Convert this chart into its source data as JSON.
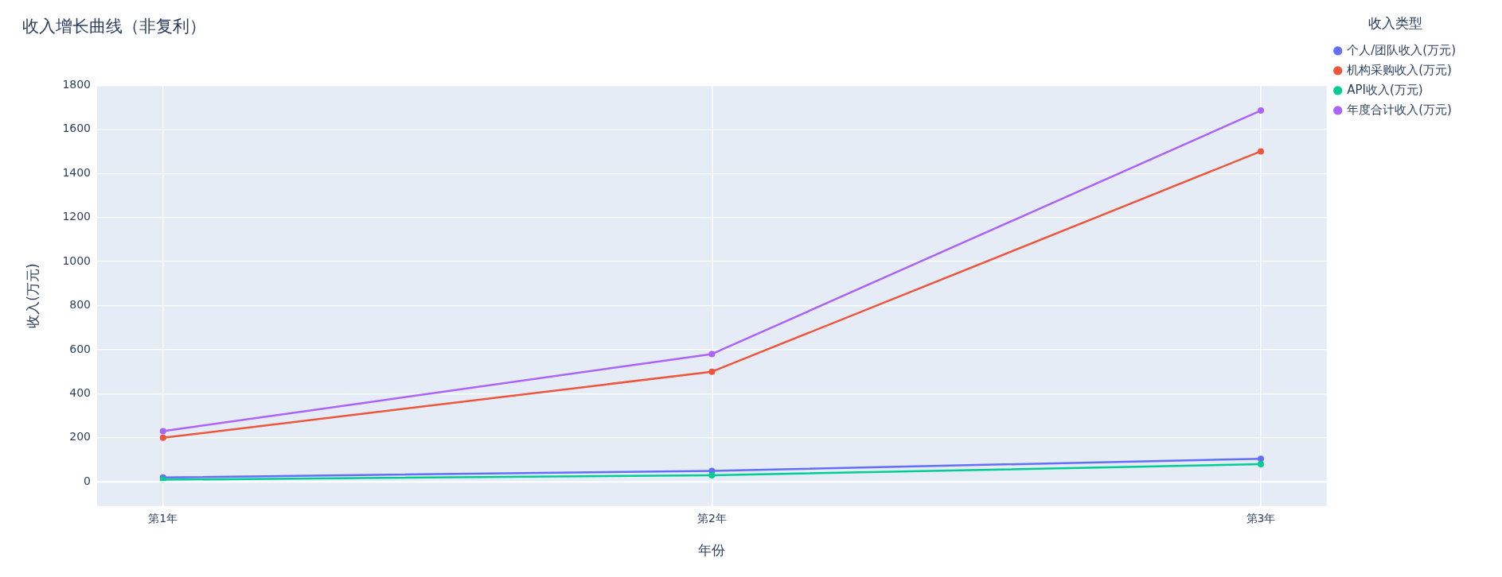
{
  "chart_data": {
    "type": "line",
    "title": "收入增长曲线（非复利）",
    "xlabel": "年份",
    "ylabel": "收入(万元)",
    "legend_title": "收入类型",
    "categories": [
      "第1年",
      "第2年",
      "第3年"
    ],
    "series": [
      {
        "name": "个人/团队收入(万元)",
        "color": "#636efa",
        "values": [
          20,
          50,
          105
        ]
      },
      {
        "name": "机构采购收入(万元)",
        "color": "#ef553b",
        "values": [
          200,
          500,
          1500
        ]
      },
      {
        "name": "API收入(万元)",
        "color": "#00cc96",
        "values": [
          10,
          30,
          80
        ]
      },
      {
        "name": "年度合计收入(万元)",
        "color": "#ab63fa",
        "values": [
          230,
          580,
          1685
        ]
      }
    ],
    "ylim": [
      -110,
      1800
    ],
    "yticks": [
      0,
      200,
      400,
      600,
      800,
      1000,
      1200,
      1400,
      1600,
      1800
    ],
    "grid": true,
    "legend": "top right",
    "marker": "circle",
    "line_style": "solid"
  }
}
